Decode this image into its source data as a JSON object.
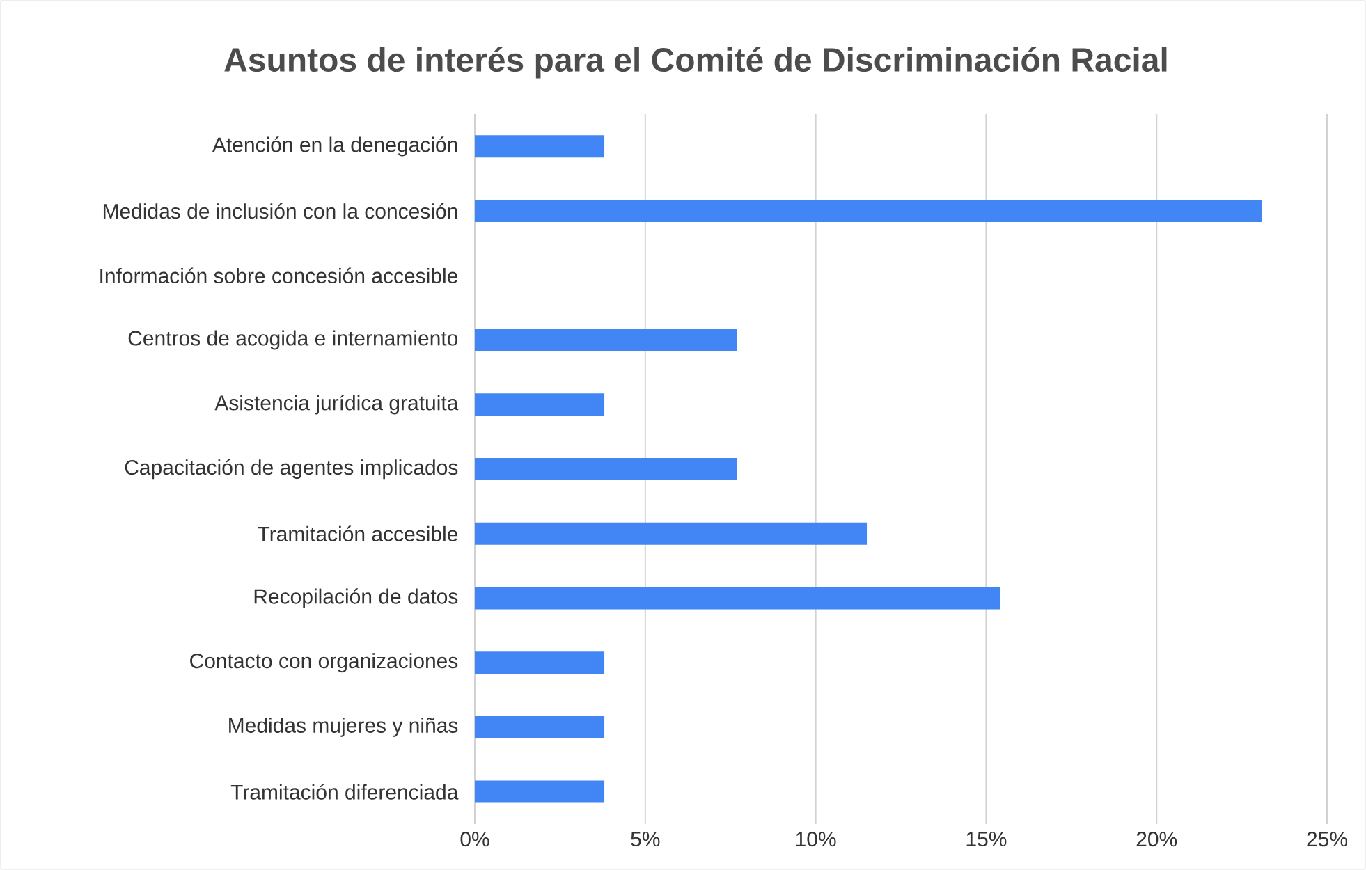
{
  "chart_data": {
    "type": "bar",
    "orientation": "horizontal",
    "title": "Asuntos de interés para el Comité de Discriminación Racial",
    "categories": [
      "Atención en la denegación",
      "Medidas de inclusión con la concesión",
      "Información sobre concesión accesible",
      "Centros de acogida e internamiento",
      "Asistencia jurídica gratuita",
      "Capacitación de agentes implicados",
      "Tramitación accesible",
      "Recopilación de datos",
      "Contacto con organizaciones",
      "Medidas mujeres y niñas",
      "Tramitación diferenciada"
    ],
    "values": [
      3.8,
      23.1,
      0,
      7.7,
      3.8,
      7.7,
      11.5,
      15.4,
      3.8,
      3.8,
      3.8
    ],
    "color": "#4285f4",
    "xlim": [
      0,
      25
    ],
    "xticks": [
      {
        "value": 0,
        "label": "0%"
      },
      {
        "value": 5,
        "label": "5%"
      },
      {
        "value": 10,
        "label": "10%"
      },
      {
        "value": 15,
        "label": "15%"
      },
      {
        "value": 20,
        "label": "20%"
      },
      {
        "value": 25,
        "label": "25%"
      }
    ],
    "grid": "x"
  }
}
